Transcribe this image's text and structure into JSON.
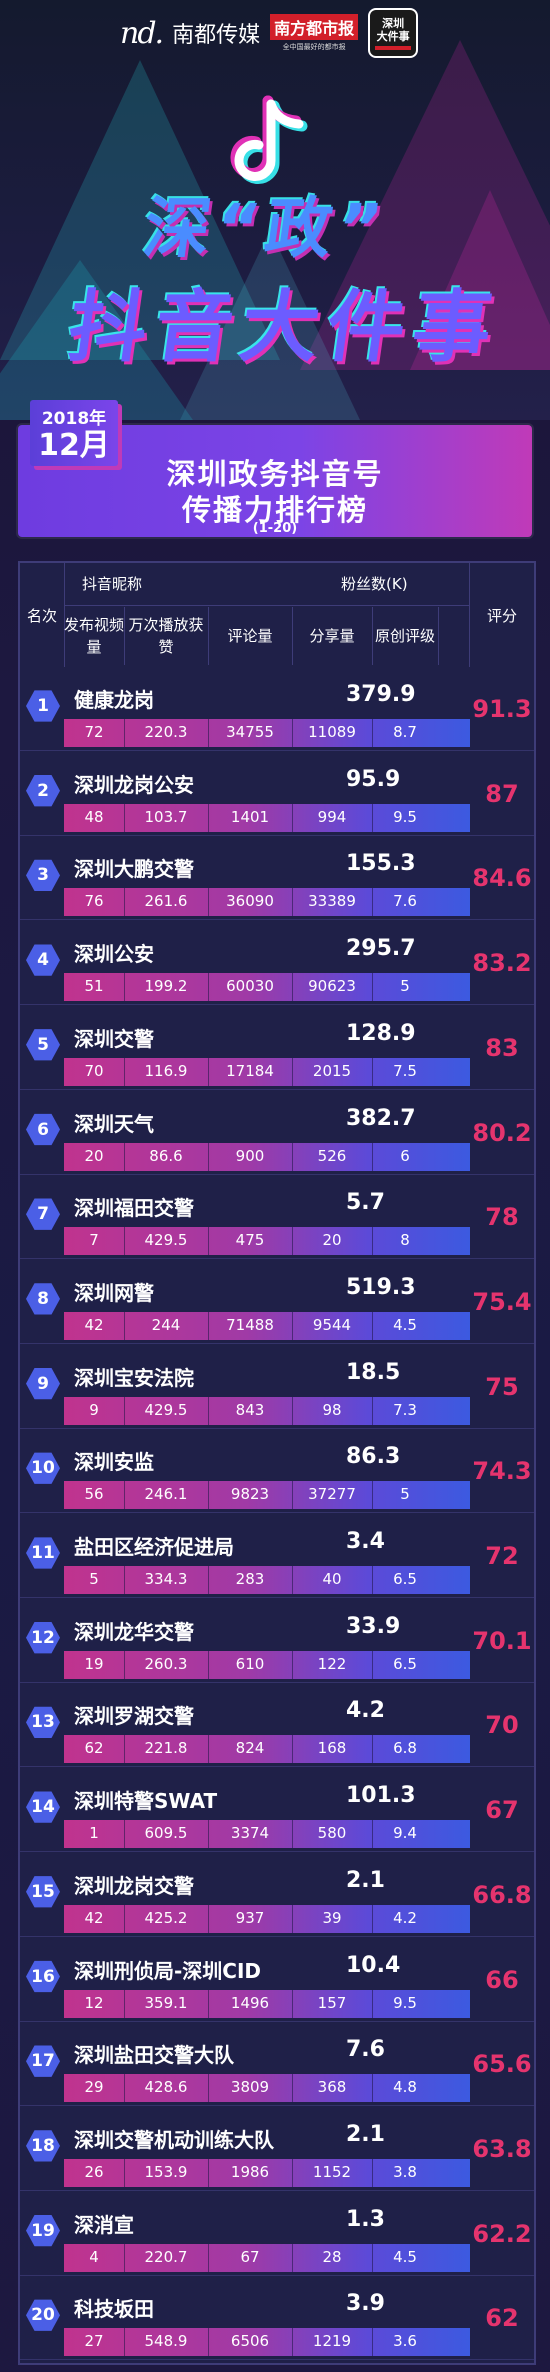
{
  "brand": {
    "nd_logo": "nd.",
    "nd_name": "南都传媒",
    "paper_name": "南方都市报",
    "paper_sub": "全中国最好的都市报",
    "app_badge_line1": "深圳",
    "app_badge_line2": "大件事"
  },
  "poster": {
    "title_line1": "深“政”",
    "title_line2": "抖音大件事"
  },
  "month": {
    "year": "2018年",
    "month": "12月"
  },
  "banner": {
    "title1": "深圳政务抖音号",
    "title2": "传播力排行榜",
    "range": "(1-20)"
  },
  "table_header": {
    "rank": "名次",
    "nickname": "抖音昵称",
    "fans": "粉丝数(K)",
    "score": "评分",
    "col1": "发布视频量",
    "col2": "万次播放获赞",
    "col3": "评论量",
    "col4": "分享量",
    "col5": "原创评级"
  },
  "rows": [
    {
      "rank": "1",
      "name": "健康龙岗",
      "fans": "379.9",
      "v1": "72",
      "v2": "220.3",
      "v3": "34755",
      "v4": "11089",
      "v5": "8.7",
      "score": "91.3"
    },
    {
      "rank": "2",
      "name": "深圳龙岗公安",
      "fans": "95.9",
      "v1": "48",
      "v2": "103.7",
      "v3": "1401",
      "v4": "994",
      "v5": "9.5",
      "score": "87"
    },
    {
      "rank": "3",
      "name": "深圳大鹏交警",
      "fans": "155.3",
      "v1": "76",
      "v2": "261.6",
      "v3": "36090",
      "v4": "33389",
      "v5": "7.6",
      "score": "84.6"
    },
    {
      "rank": "4",
      "name": "深圳公安",
      "fans": "295.7",
      "v1": "51",
      "v2": "199.2",
      "v3": "60030",
      "v4": "90623",
      "v5": "5",
      "score": "83.2"
    },
    {
      "rank": "5",
      "name": "深圳交警",
      "fans": "128.9",
      "v1": "70",
      "v2": "116.9",
      "v3": "17184",
      "v4": "2015",
      "v5": "7.5",
      "score": "83"
    },
    {
      "rank": "6",
      "name": "深圳天气",
      "fans": "382.7",
      "v1": "20",
      "v2": "86.6",
      "v3": "900",
      "v4": "526",
      "v5": "6",
      "score": "80.2"
    },
    {
      "rank": "7",
      "name": "深圳福田交警",
      "fans": "5.7",
      "v1": "7",
      "v2": "429.5",
      "v3": "475",
      "v4": "20",
      "v5": "8",
      "score": "78"
    },
    {
      "rank": "8",
      "name": "深圳网警",
      "fans": "519.3",
      "v1": "42",
      "v2": "244",
      "v3": "71488",
      "v4": "9544",
      "v5": "4.5",
      "score": "75.4"
    },
    {
      "rank": "9",
      "name": "深圳宝安法院",
      "fans": "18.5",
      "v1": "9",
      "v2": "429.5",
      "v3": "843",
      "v4": "98",
      "v5": "7.3",
      "score": "75"
    },
    {
      "rank": "10",
      "name": "深圳安监",
      "fans": "86.3",
      "v1": "56",
      "v2": "246.1",
      "v3": "9823",
      "v4": "37277",
      "v5": "5",
      "score": "74.3"
    },
    {
      "rank": "11",
      "name": "盐田区经济促进局",
      "fans": "3.4",
      "v1": "5",
      "v2": "334.3",
      "v3": "283",
      "v4": "40",
      "v5": "6.5",
      "score": "72"
    },
    {
      "rank": "12",
      "name": "深圳龙华交警",
      "fans": "33.9",
      "v1": "19",
      "v2": "260.3",
      "v3": "610",
      "v4": "122",
      "v5": "6.5",
      "score": "70.1"
    },
    {
      "rank": "13",
      "name": "深圳罗湖交警",
      "fans": "4.2",
      "v1": "62",
      "v2": "221.8",
      "v3": "824",
      "v4": "168",
      "v5": "6.8",
      "score": "70"
    },
    {
      "rank": "14",
      "name": "深圳特警SWAT",
      "fans": "101.3",
      "v1": "1",
      "v2": "609.5",
      "v3": "3374",
      "v4": "580",
      "v5": "9.4",
      "score": "67"
    },
    {
      "rank": "15",
      "name": "深圳龙岗交警",
      "fans": "2.1",
      "v1": "42",
      "v2": "425.2",
      "v3": "937",
      "v4": "39",
      "v5": "4.2",
      "score": "66.8"
    },
    {
      "rank": "16",
      "name": "深圳刑侦局-深圳CID",
      "fans": "10.4",
      "v1": "12",
      "v2": "359.1",
      "v3": "1496",
      "v4": "157",
      "v5": "9.5",
      "score": "66"
    },
    {
      "rank": "17",
      "name": "深圳盐田交警大队",
      "fans": "7.6",
      "v1": "29",
      "v2": "428.6",
      "v3": "3809",
      "v4": "368",
      "v5": "4.8",
      "score": "65.6"
    },
    {
      "rank": "18",
      "name": "深圳交警机动训练大队",
      "fans": "2.1",
      "v1": "26",
      "v2": "153.9",
      "v3": "1986",
      "v4": "1152",
      "v5": "3.8",
      "score": "63.8"
    },
    {
      "rank": "19",
      "name": "深消宣",
      "fans": "1.3",
      "v1": "4",
      "v2": "220.7",
      "v3": "67",
      "v4": "28",
      "v5": "4.5",
      "score": "62.2"
    },
    {
      "rank": "20",
      "name": "科技坂田",
      "fans": "3.9",
      "v1": "27",
      "v2": "548.9",
      "v3": "6506",
      "v4": "1219",
      "v5": "3.6",
      "score": "62"
    }
  ],
  "colors": {
    "background": "#1d1840",
    "score_text": "#e5346e",
    "rank_badge": "#4b5fe6",
    "banner_purple": "#7c44e6",
    "accent_magenta": "#c03ab8"
  }
}
